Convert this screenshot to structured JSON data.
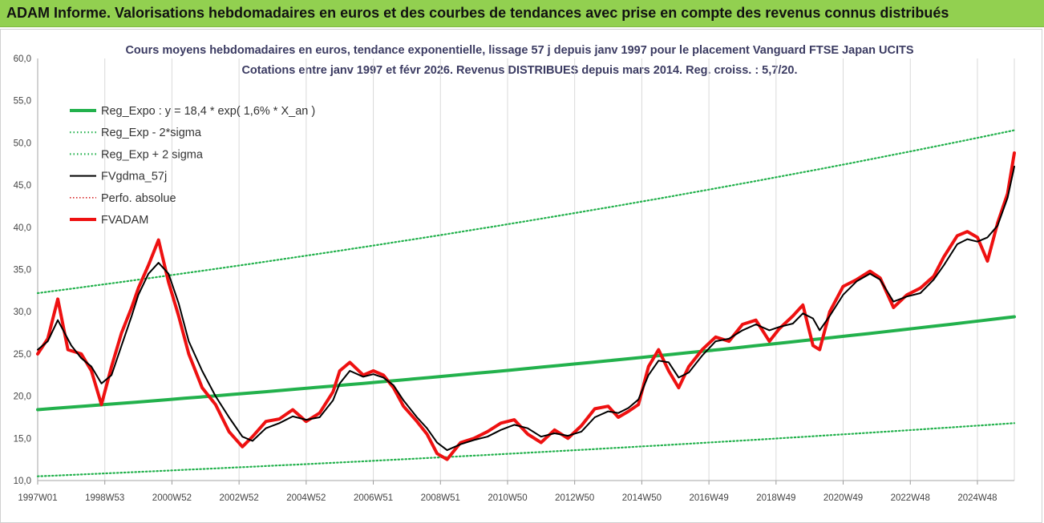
{
  "banner": {
    "title": "ADAM Informe. Valorisations hebdomadaires en euros et des courbes de tendances avec prise en compte des revenus connus distribués"
  },
  "colors": {
    "banner_bg": "#92d050",
    "trend": "#22b14c",
    "fv57": "#000000",
    "fvadam": "#ee1111",
    "perfo": "#d62728",
    "grid": "#d9d9d9"
  },
  "chart_data": {
    "type": "line",
    "title": "Cours moyens hebdomadaires en euros, tendance exponentielle, lissage 57 j depuis janv 1997 pour le placement Vanguard FTSE Japan UCITS",
    "subtitle": "Cotations entre janv 1997 et févr 2026. Revenus DISTRIBUES depuis mars 2014. Reg. croiss. : 5,7/20.",
    "xlabel": "",
    "ylabel": "",
    "ylim": [
      10,
      60
    ],
    "y_ticks": [
      "10,0",
      "15,0",
      "20,0",
      "25,0",
      "30,0",
      "35,0",
      "40,0",
      "45,0",
      "50,0",
      "55,0",
      "60,0"
    ],
    "x_ticks": [
      "1997W01",
      "1998W53",
      "2000W52",
      "2002W52",
      "2004W52",
      "2006W51",
      "2008W51",
      "2010W50",
      "2012W50",
      "2014W50",
      "2016W49",
      "2018W49",
      "2020W49",
      "2022W48",
      "2024W48"
    ],
    "x_tick_years": [
      1997.0,
      1999.0,
      2001.0,
      2003.0,
      2005.0,
      2007.0,
      2009.0,
      2011.0,
      2013.0,
      2015.0,
      2017.0,
      2019.0,
      2021.0,
      2023.0,
      2025.0
    ],
    "x_range": [
      1997.0,
      2026.1
    ],
    "grid": "vertical",
    "legend_position": "top-left",
    "series": [
      {
        "name": "Reg_Expo : y = 18,4 * exp( 1,6% *  X_an )",
        "style": "solid-thick",
        "x": [
          1997.0,
          2026.1
        ],
        "y": [
          18.4,
          29.4
        ]
      },
      {
        "name": "Reg_Exp - 2*sigma",
        "style": "dotted",
        "x": [
          1997.0,
          2026.1
        ],
        "y": [
          10.5,
          16.8
        ]
      },
      {
        "name": "Reg_Exp + 2 sigma",
        "style": "dotted",
        "x": [
          1997.0,
          2026.1
        ],
        "y": [
          32.2,
          51.5
        ]
      },
      {
        "name": "FVgdma_57j",
        "style": "solid",
        "x": [
          1997.0,
          1997.3,
          1997.6,
          1998.0,
          1998.3,
          1998.6,
          1998.9,
          1999.2,
          1999.5,
          1999.8,
          2000.0,
          2000.3,
          2000.6,
          2000.9,
          2001.2,
          2001.5,
          2001.9,
          2002.3,
          2002.7,
          2003.1,
          2003.4,
          2003.8,
          2004.2,
          2004.6,
          2005.0,
          2005.4,
          2005.8,
          2006.0,
          2006.3,
          2006.7,
          2007.0,
          2007.3,
          2007.6,
          2007.9,
          2008.3,
          2008.6,
          2008.9,
          2009.2,
          2009.6,
          2010.0,
          2010.4,
          2010.8,
          2011.2,
          2011.6,
          2012.0,
          2012.4,
          2012.8,
          2013.2,
          2013.6,
          2014.0,
          2014.3,
          2014.6,
          2014.9,
          2015.2,
          2015.5,
          2015.8,
          2016.1,
          2016.4,
          2016.8,
          2017.2,
          2017.6,
          2018.0,
          2018.4,
          2018.8,
          2019.1,
          2019.5,
          2019.8,
          2020.1,
          2020.3,
          2020.6,
          2021.0,
          2021.4,
          2021.8,
          2022.1,
          2022.5,
          2022.9,
          2023.3,
          2023.7,
          2024.0,
          2024.4,
          2024.7,
          2025.0,
          2025.3,
          2025.6,
          2025.9,
          2026.1
        ],
        "y": [
          25.5,
          26.5,
          29.0,
          26.0,
          24.5,
          23.5,
          21.5,
          22.5,
          26.0,
          29.5,
          32.0,
          34.5,
          35.8,
          34.5,
          31.0,
          26.5,
          23.0,
          20.0,
          17.5,
          15.2,
          14.7,
          16.2,
          16.8,
          17.6,
          17.2,
          17.5,
          19.5,
          21.5,
          23.0,
          22.3,
          22.6,
          22.2,
          21.3,
          19.5,
          17.5,
          16.2,
          14.5,
          13.6,
          14.3,
          14.8,
          15.2,
          16.0,
          16.6,
          16.2,
          15.2,
          15.6,
          15.3,
          15.8,
          17.5,
          18.2,
          18.0,
          18.6,
          19.6,
          22.5,
          24.2,
          24.0,
          22.2,
          22.8,
          24.8,
          26.5,
          26.8,
          27.8,
          28.5,
          27.8,
          28.2,
          28.6,
          29.8,
          29.2,
          27.8,
          29.5,
          32.0,
          33.6,
          34.5,
          33.8,
          31.2,
          31.8,
          32.2,
          33.8,
          35.5,
          38.0,
          38.6,
          38.3,
          38.8,
          40.2,
          43.5,
          47.2
        ]
      },
      {
        "name": "Perfo. absolue",
        "style": "dotted-red",
        "x": [],
        "y": []
      },
      {
        "name": "FVADAM",
        "style": "solid-thick",
        "x": [
          1997.0,
          1997.3,
          1997.6,
          1997.9,
          1998.3,
          1998.6,
          1998.9,
          1999.2,
          1999.5,
          1999.8,
          2000.0,
          2000.3,
          2000.6,
          2000.9,
          2001.2,
          2001.5,
          2001.9,
          2002.3,
          2002.7,
          2003.1,
          2003.4,
          2003.8,
          2004.2,
          2004.6,
          2005.0,
          2005.4,
          2005.8,
          2006.0,
          2006.3,
          2006.7,
          2007.0,
          2007.3,
          2007.6,
          2007.9,
          2008.3,
          2008.6,
          2008.9,
          2009.2,
          2009.6,
          2010.0,
          2010.4,
          2010.8,
          2011.2,
          2011.6,
          2012.0,
          2012.4,
          2012.8,
          2013.2,
          2013.6,
          2014.0,
          2014.3,
          2014.6,
          2014.9,
          2015.2,
          2015.5,
          2015.8,
          2016.1,
          2016.4,
          2016.8,
          2017.2,
          2017.6,
          2018.0,
          2018.4,
          2018.8,
          2019.1,
          2019.5,
          2019.8,
          2020.1,
          2020.3,
          2020.6,
          2021.0,
          2021.4,
          2021.8,
          2022.1,
          2022.5,
          2022.9,
          2023.3,
          2023.7,
          2024.0,
          2024.4,
          2024.7,
          2025.0,
          2025.3,
          2025.6,
          2025.9,
          2026.1
        ],
        "y": [
          25.0,
          26.8,
          31.5,
          25.5,
          25.0,
          23.0,
          19.0,
          23.5,
          27.5,
          30.5,
          32.8,
          35.5,
          38.5,
          33.5,
          29.5,
          25.0,
          21.0,
          19.0,
          15.8,
          14.0,
          15.2,
          17.0,
          17.3,
          18.4,
          17.0,
          18.0,
          20.5,
          23.0,
          24.0,
          22.5,
          23.0,
          22.5,
          21.0,
          18.8,
          17.0,
          15.5,
          13.2,
          12.5,
          14.5,
          15.0,
          15.8,
          16.8,
          17.2,
          15.5,
          14.5,
          16.0,
          15.0,
          16.5,
          18.5,
          18.8,
          17.5,
          18.2,
          19.0,
          23.5,
          25.5,
          23.0,
          21.0,
          23.5,
          25.5,
          27.0,
          26.5,
          28.5,
          29.0,
          26.5,
          28.0,
          29.5,
          30.8,
          26.0,
          25.5,
          30.0,
          33.0,
          33.8,
          34.8,
          34.0,
          30.5,
          32.0,
          32.8,
          34.2,
          36.5,
          39.0,
          39.5,
          38.8,
          36.0,
          40.5,
          44.0,
          48.8
        ]
      }
    ]
  }
}
